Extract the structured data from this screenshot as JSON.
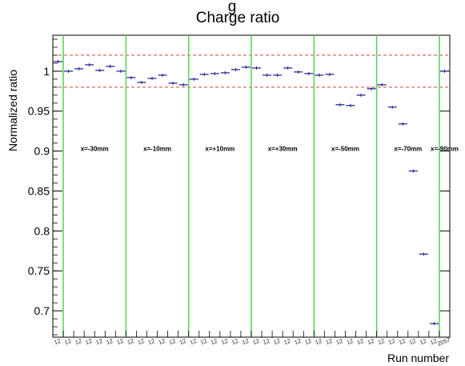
{
  "chart_data": {
    "type": "scatter",
    "title_partial": "g",
    "title": "Charge ratio",
    "xlabel": "Run number",
    "ylabel": "Normalized ratio",
    "ylim": [
      0.667,
      1.045
    ],
    "yticks": [
      0.7,
      0.75,
      0.8,
      0.85,
      0.9,
      0.95,
      1
    ],
    "ytick_labels": [
      "0.7",
      "0.75",
      "0.8",
      "0.85",
      "0.9",
      "0.95",
      "1"
    ],
    "reference_lines": [
      0.98,
      1.02
    ],
    "reference_line_color": "#d04040",
    "separator_color": "#5cd65c",
    "marker_color": "#1a1a8c",
    "runs": 37,
    "values": [
      1.012,
      1.0,
      1.003,
      1.008,
      1.001,
      1.006,
      1.0,
      0.992,
      0.986,
      0.991,
      0.995,
      0.985,
      0.983,
      0.99,
      0.996,
      0.997,
      0.998,
      1.002,
      1.005,
      1.004,
      0.995,
      0.995,
      1.004,
      0.999,
      0.997,
      0.995,
      0.996,
      0.958,
      0.957,
      0.97,
      0.978,
      0.983,
      0.955,
      0.934,
      0.875,
      0.771,
      0.684,
      1.0
    ],
    "region_boundaries": [
      1,
      7,
      13,
      19,
      25,
      31,
      37
    ],
    "regions": [
      "x=-30mm",
      "x=-10mm",
      "x=+10mm",
      "x=+30mm",
      "x=-50mm",
      "x=-70mm",
      "x=-90mm"
    ],
    "run_labels": [
      "12",
      "12",
      "12",
      "12",
      "12",
      "12",
      "12",
      "12",
      "12",
      "12",
      "12",
      "12",
      "12",
      "12",
      "12",
      "12",
      "12",
      "12",
      "12",
      "12",
      "12",
      "12",
      "12",
      "12",
      "12",
      "12",
      "12",
      "12",
      "12",
      "12",
      "12",
      "12",
      "12",
      "12",
      "12",
      "12",
      "12",
      "2057"
    ],
    "grid": false,
    "legend": "none"
  }
}
